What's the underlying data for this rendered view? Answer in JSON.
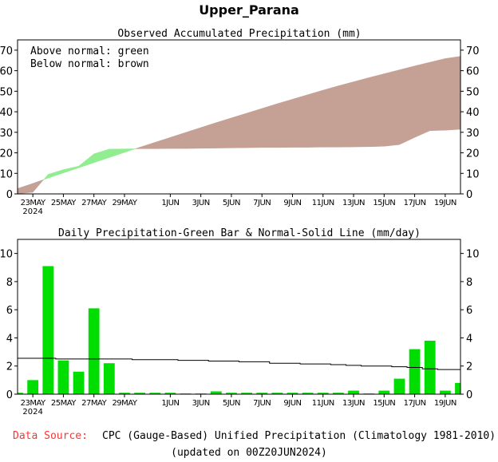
{
  "title": "Upper_Parana",
  "footer": {
    "source_label": "Data Source:",
    "source_text": "CPC (Gauge-Based) Unified Precipitation (Climatology 1981-2010)",
    "updated": "(updated on 00Z20JUN2024)",
    "source_label_color": "#ff3333"
  },
  "chart_data": [
    {
      "type": "area",
      "title": "Observed Accumulated Precipitation (mm)",
      "legend_lines": [
        "Above normal: green",
        "Below normal: brown"
      ],
      "colors": {
        "above": "#90ee90",
        "below": "#c4a095"
      },
      "x": [
        "22MAY",
        "23MAY",
        "24MAY",
        "25MAY",
        "26MAY",
        "27MAY",
        "28MAY",
        "29MAY",
        "30MAY",
        "31MAY",
        "1JUN",
        "2JUN",
        "3JUN",
        "4JUN",
        "5JUN",
        "6JUN",
        "7JUN",
        "8JUN",
        "9JUN",
        "10JUN",
        "11JUN",
        "12JUN",
        "13JUN",
        "14JUN",
        "15JUN",
        "16JUN",
        "17JUN",
        "18JUN",
        "19JUN",
        "20JUN"
      ],
      "x_tick_labels": [
        "23MAY",
        "25MAY",
        "27MAY",
        "29MAY",
        "1JUN",
        "3JUN",
        "5JUN",
        "7JUN",
        "9JUN",
        "11JUN",
        "13JUN",
        "15JUN",
        "17JUN",
        "19JUN"
      ],
      "x_year_label": "2024",
      "series": [
        {
          "name": "observed",
          "values": [
            0.1,
            0.8,
            9.5,
            11.8,
            13.5,
            19.5,
            21.8,
            21.9,
            22.0,
            22.0,
            22.1,
            22.1,
            22.2,
            22.3,
            22.4,
            22.5,
            22.6,
            22.6,
            22.7,
            22.7,
            22.8,
            22.8,
            22.9,
            23.0,
            23.2,
            24.0,
            27.5,
            30.8,
            31.0,
            31.5
          ]
        },
        {
          "name": "normal",
          "values": [
            2.6,
            5.1,
            7.7,
            10.2,
            12.7,
            15.2,
            17.7,
            20.2,
            22.7,
            25.1,
            27.5,
            29.9,
            32.3,
            34.7,
            37.0,
            39.3,
            41.6,
            43.9,
            46.1,
            48.3,
            50.5,
            52.6,
            54.6,
            56.6,
            58.5,
            60.4,
            62.3,
            64.1,
            65.9,
            67.0
          ]
        }
      ],
      "ylim": [
        0,
        75
      ],
      "y_ticks": [
        0,
        10,
        20,
        30,
        40,
        50,
        60,
        70
      ]
    },
    {
      "type": "bar",
      "title": "Daily Precipitation-Green Bar & Normal-Solid Line (mm/day)",
      "colors": {
        "bar": "#00dd00",
        "line": "#000000"
      },
      "x": [
        "22MAY",
        "23MAY",
        "24MAY",
        "25MAY",
        "26MAY",
        "27MAY",
        "28MAY",
        "29MAY",
        "30MAY",
        "31MAY",
        "1JUN",
        "2JUN",
        "3JUN",
        "4JUN",
        "5JUN",
        "6JUN",
        "7JUN",
        "8JUN",
        "9JUN",
        "10JUN",
        "11JUN",
        "12JUN",
        "13JUN",
        "14JUN",
        "15JUN",
        "16JUN",
        "17JUN",
        "18JUN",
        "19JUN",
        "20JUN"
      ],
      "x_tick_labels": [
        "23MAY",
        "25MAY",
        "27MAY",
        "29MAY",
        "1JUN",
        "3JUN",
        "5JUN",
        "7JUN",
        "9JUN",
        "11JUN",
        "13JUN",
        "15JUN",
        "17JUN",
        "19JUN"
      ],
      "x_year_label": "2024",
      "bars": [
        0.1,
        1.0,
        9.1,
        2.4,
        1.6,
        6.1,
        2.2,
        0.1,
        0.1,
        0.1,
        0.1,
        0.05,
        0.05,
        0.2,
        0.1,
        0.1,
        0.1,
        0.1,
        0.1,
        0.1,
        0.1,
        0.1,
        0.25,
        0.05,
        0.25,
        1.1,
        3.2,
        3.8,
        0.25,
        0.8
      ],
      "normal": [
        2.55,
        2.55,
        2.55,
        2.5,
        2.5,
        2.5,
        2.5,
        2.5,
        2.45,
        2.45,
        2.45,
        2.4,
        2.4,
        2.35,
        2.35,
        2.3,
        2.3,
        2.2,
        2.2,
        2.15,
        2.15,
        2.1,
        2.05,
        2.0,
        2.0,
        1.95,
        1.9,
        1.8,
        1.75,
        1.75
      ],
      "ylim": [
        0,
        11
      ],
      "y_ticks": [
        0,
        2,
        4,
        6,
        8,
        10
      ]
    }
  ]
}
